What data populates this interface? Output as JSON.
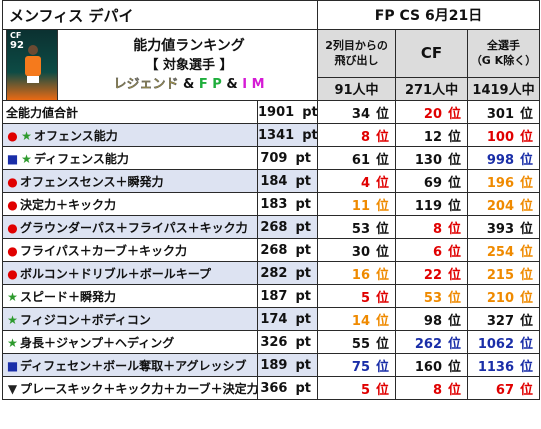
{
  "header": {
    "player_name": "メンフィス デパイ",
    "date": "FP CS 6月21日"
  },
  "card": {
    "position": "CF",
    "rating": "92"
  },
  "banner": {
    "line1": "能力値ランキング",
    "line2": "【 対象選手 】",
    "line3_legend": "レジェンド",
    "line3_amp1": " & ",
    "line3_fp": "F P",
    "line3_amp2": " & ",
    "line3_im": "I M"
  },
  "columns": {
    "col1_line1": "2列目からの",
    "col1_line2": "飛び出し",
    "col2": "CF",
    "col3_line1": "全選手",
    "col3_line2": "（G K除く）",
    "count1": "91人中",
    "count2": "271人中",
    "count3": "1419人中"
  },
  "units": {
    "pt": "pt",
    "rank": "位"
  },
  "rows": [
    {
      "marker": "",
      "label": "全能力値合計",
      "pt": "1901",
      "r1": "34",
      "c1": "default",
      "r2": "20",
      "c2": "red",
      "r3": "301",
      "c3": "default"
    },
    {
      "marker": "●★",
      "label": "オフェンス能力",
      "pt": "1341",
      "r1": "8",
      "c1": "red",
      "r2": "12",
      "c2": "default",
      "r3": "100",
      "c3": "red"
    },
    {
      "marker": "■★",
      "label": "ディフェンス能力",
      "pt": "709",
      "r1": "61",
      "c1": "default",
      "r2": "130",
      "c2": "default",
      "r3": "998",
      "c3": "blue"
    },
    {
      "marker": "●",
      "label": "オフェンスセンス＋瞬発力",
      "pt": "184",
      "r1": "4",
      "c1": "red",
      "r2": "69",
      "c2": "default",
      "r3": "196",
      "c3": "orange"
    },
    {
      "marker": "●",
      "label": "決定力＋キック力",
      "pt": "183",
      "r1": "11",
      "c1": "orange",
      "r2": "119",
      "c2": "default",
      "r3": "204",
      "c3": "orange"
    },
    {
      "marker": "●",
      "label": "グラウンダーパス＋フライパス＋キック力",
      "pt": "268",
      "r1": "53",
      "c1": "default",
      "r2": "8",
      "c2": "red",
      "r3": "393",
      "c3": "default"
    },
    {
      "marker": "●",
      "label": "フライパス＋カーブ＋キック力",
      "pt": "268",
      "r1": "30",
      "c1": "default",
      "r2": "6",
      "c2": "red",
      "r3": "254",
      "c3": "orange"
    },
    {
      "marker": "●",
      "label": "ボルコン＋ドリブル＋ボールキープ",
      "pt": "282",
      "r1": "16",
      "c1": "orange",
      "r2": "22",
      "c2": "red",
      "r3": "215",
      "c3": "orange"
    },
    {
      "marker": "★",
      "label": "スピード＋瞬発力",
      "pt": "187",
      "r1": "5",
      "c1": "red",
      "r2": "53",
      "c2": "orange",
      "r3": "210",
      "c3": "orange"
    },
    {
      "marker": "★",
      "label": "フィジコン＋ボディコン",
      "pt": "174",
      "r1": "14",
      "c1": "orange",
      "r2": "98",
      "c2": "default",
      "r3": "327",
      "c3": "default"
    },
    {
      "marker": "★",
      "label": "身長＋ジャンプ＋ヘディング",
      "pt": "326",
      "r1": "55",
      "c1": "default",
      "r2": "262",
      "c2": "blue",
      "r3": "1062",
      "c3": "blue"
    },
    {
      "marker": "■",
      "label": "ディフェセン＋ボール奪取＋アグレッシブ",
      "pt": "189",
      "r1": "75",
      "c1": "blue",
      "r2": "160",
      "c2": "default",
      "r3": "1136",
      "c3": "blue"
    },
    {
      "marker": "▼",
      "label": "プレースキック＋キック力＋カーブ＋決定力",
      "pt": "366",
      "r1": "5",
      "c1": "red",
      "r2": "8",
      "c2": "red",
      "r3": "67",
      "c3": "red"
    }
  ],
  "colors": {
    "red": "#e00000",
    "orange": "#ef8a00",
    "blue": "#1a2ea8",
    "alt_row": "#dde3f2",
    "header_gray": "#dcdcdc"
  }
}
